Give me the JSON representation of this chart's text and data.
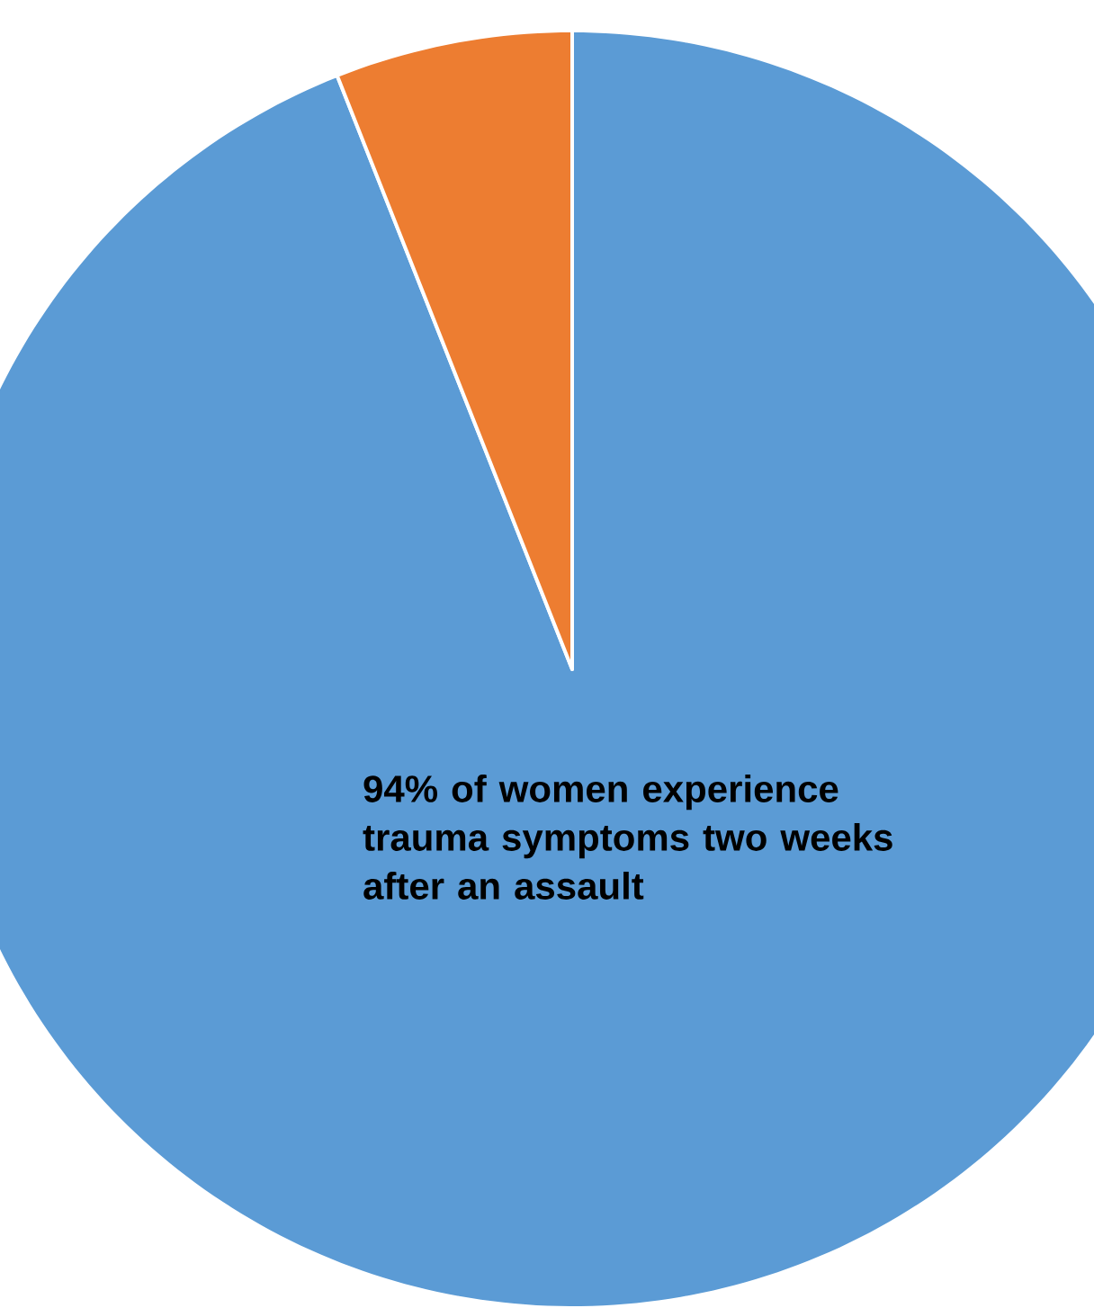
{
  "chart_data": {
    "type": "pie",
    "categories": [
      null,
      null
    ],
    "values": [
      94,
      6
    ],
    "colors": [
      "#5b9bd5",
      "#ed7d31"
    ],
    "annotations": [
      "**94%** of women experience trauma symptoms two weeks after an assault"
    ]
  }
}
